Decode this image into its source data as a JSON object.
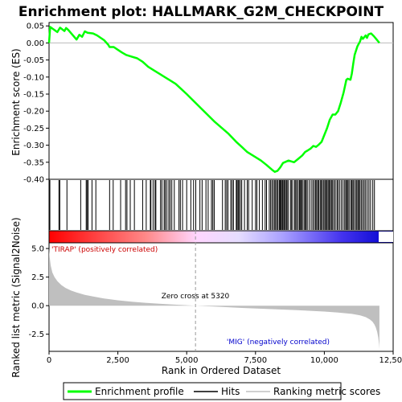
{
  "chart_data": {
    "type": "line",
    "title": "Enrichment plot: HALLMARK_G2M_CHECKPOINT",
    "xlabel": "Rank in Ordered Dataset",
    "es_ylabel": "Enrichment score (ES)",
    "metric_ylabel": "Ranked list metric (Signal2Noise)",
    "xlim": [
      0,
      12500
    ],
    "x_ticks": [
      0,
      2500,
      5000,
      7500,
      10000,
      12500
    ],
    "x_tick_labels": [
      "0",
      "2,500",
      "5,000",
      "7,500",
      "10,000",
      "12,500"
    ],
    "es_ylim": [
      -0.4,
      0.06
    ],
    "es_ticks": [
      0.05,
      0.0,
      -0.05,
      -0.1,
      -0.15,
      -0.2,
      -0.25,
      -0.3,
      -0.35,
      -0.4
    ],
    "es_tick_labels": [
      "0.05",
      "0.00",
      "-0.05",
      "-0.10",
      "-0.15",
      "-0.20",
      "-0.25",
      "-0.30",
      "-0.35",
      "-0.40"
    ],
    "metric_ylim": [
      -4.0,
      5.5
    ],
    "metric_ticks": [
      5.0,
      2.5,
      0.0,
      -2.5
    ],
    "metric_tick_labels": [
      "5.0",
      "2.5",
      "0.0",
      "-2.5"
    ],
    "n_genes": 12000,
    "zero_cross_rank": 5320,
    "zero_cross_label": "Zero cross at 5320",
    "positive_label": "'TIRAP' (positively correlated)",
    "negative_label": "'MIG' (negatively correlated)",
    "series": [
      {
        "name": "Enrichment profile",
        "color": "#00ff00",
        "x": [
          0,
          40,
          300,
          400,
          560,
          620,
          700,
          1000,
          1100,
          1200,
          1300,
          1400,
          1600,
          1750,
          2000,
          2150,
          2200,
          2350,
          2500,
          2650,
          2800,
          3000,
          3200,
          3400,
          3600,
          3800,
          4000,
          4200,
          4400,
          4600,
          4800,
          5000,
          5500,
          6000,
          6500,
          6800,
          7000,
          7200,
          7500,
          7700,
          7900,
          8100,
          8200,
          8300,
          8400,
          8500,
          8700,
          8900,
          9050,
          9200,
          9300,
          9400,
          9500,
          9600,
          9700,
          9800,
          9900,
          10000,
          10100,
          10200,
          10300,
          10400,
          10500,
          10600,
          10700,
          10800,
          10850,
          10950,
          11000,
          11050,
          11100,
          11200,
          11300,
          11350,
          11400,
          11500,
          11550,
          11600,
          11700,
          11800,
          11900,
          12000
        ],
        "y": [
          0.0,
          0.047,
          0.032,
          0.045,
          0.035,
          0.044,
          0.038,
          0.01,
          0.024,
          0.018,
          0.034,
          0.03,
          0.028,
          0.022,
          0.008,
          -0.005,
          -0.012,
          -0.012,
          -0.02,
          -0.028,
          -0.035,
          -0.04,
          -0.045,
          -0.055,
          -0.07,
          -0.08,
          -0.09,
          -0.1,
          -0.11,
          -0.12,
          -0.135,
          -0.15,
          -0.19,
          -0.23,
          -0.265,
          -0.29,
          -0.305,
          -0.32,
          -0.335,
          -0.345,
          -0.358,
          -0.372,
          -0.378,
          -0.375,
          -0.365,
          -0.352,
          -0.345,
          -0.35,
          -0.34,
          -0.33,
          -0.32,
          -0.315,
          -0.31,
          -0.302,
          -0.305,
          -0.298,
          -0.29,
          -0.27,
          -0.25,
          -0.225,
          -0.21,
          -0.21,
          -0.2,
          -0.175,
          -0.145,
          -0.108,
          -0.105,
          -0.108,
          -0.09,
          -0.06,
          -0.035,
          -0.01,
          0.005,
          0.018,
          0.012,
          0.022,
          0.015,
          0.025,
          0.028,
          0.02,
          0.01,
          0.0
        ]
      },
      {
        "name": "Hits",
        "color": "#000000",
        "hit_ranks": [
          30,
          360,
          390,
          650,
          1150,
          1350,
          1380,
          1420,
          1560,
          1700,
          2200,
          2330,
          2600,
          2780,
          2830,
          2950,
          3100,
          3400,
          3530,
          3680,
          3700,
          3780,
          3850,
          3880,
          4050,
          4100,
          4180,
          4220,
          4280,
          4350,
          4400,
          4460,
          4550,
          4720,
          4770,
          4850,
          5000,
          5150,
          5250,
          5330,
          5480,
          5560,
          5700,
          5780,
          5900,
          5950,
          6000,
          6300,
          6400,
          6450,
          6500,
          6600,
          6650,
          6700,
          6800,
          6830,
          6870,
          6900,
          6950,
          7000,
          7100,
          7200,
          7250,
          7380,
          7500,
          7550,
          7640,
          7750,
          7850,
          7900,
          8000,
          8050,
          8100,
          8150,
          8200,
          8230,
          8280,
          8320,
          8370,
          8400,
          8430,
          8470,
          8500,
          8540,
          8580,
          8620,
          8650,
          8700,
          8780,
          8800,
          8850,
          8920,
          8960,
          9000,
          9050,
          9100,
          9130,
          9170,
          9200,
          9260,
          9300,
          9340,
          9380,
          9450,
          9520,
          9580,
          9630,
          9680,
          9720,
          9760,
          9800,
          9850,
          9890,
          9930,
          9980,
          10020,
          10060,
          10100,
          10140,
          10180,
          10220,
          10260,
          10300,
          10350,
          10400,
          10460,
          10500,
          10560,
          10620,
          10680,
          10740,
          10780,
          10820,
          10860,
          10900,
          10960,
          11000,
          11040,
          11080,
          11140,
          11180,
          11220,
          11260,
          11300,
          11350,
          11400,
          11450,
          11500,
          11560,
          11620,
          11680,
          11760,
          11820
        ]
      },
      {
        "name": "Ranking metric scores",
        "color": "#c0c0c0",
        "x": [
          0,
          20,
          60,
          120,
          200,
          300,
          450,
          600,
          800,
          1000,
          1300,
          1600,
          2000,
          2500,
          3000,
          3500,
          4000,
          4500,
          5000,
          5320,
          6000,
          7000,
          8000,
          9000,
          10000,
          10500,
          11000,
          11300,
          11500,
          11650,
          11750,
          11820,
          11870,
          11920,
          11960,
          11990,
          12000
        ],
        "y": [
          5.0,
          4.3,
          3.5,
          2.9,
          2.5,
          2.15,
          1.8,
          1.55,
          1.32,
          1.15,
          0.95,
          0.8,
          0.62,
          0.47,
          0.35,
          0.25,
          0.17,
          0.1,
          0.04,
          0.0,
          -0.08,
          -0.2,
          -0.3,
          -0.4,
          -0.52,
          -0.6,
          -0.72,
          -0.85,
          -1.0,
          -1.2,
          -1.4,
          -1.65,
          -1.9,
          -2.3,
          -2.8,
          -3.4,
          -3.8
        ]
      }
    ],
    "legend": {
      "placement": "bottom",
      "entries": [
        "Enrichment profile",
        "Hits",
        "Ranking metric scores"
      ]
    }
  }
}
